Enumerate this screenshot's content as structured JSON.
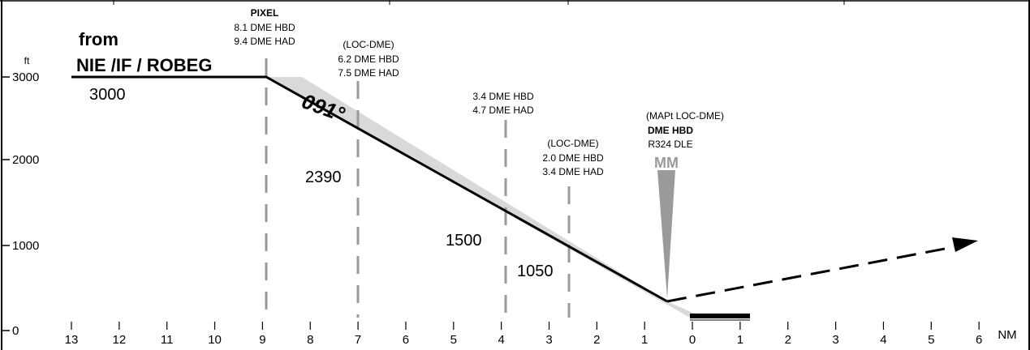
{
  "diagram": {
    "from_line1": "from",
    "from_line2": "NIE /IF / ROBEG",
    "alt_unit": "ft",
    "dist_unit": "NM",
    "initial_alt": "3000",
    "course": "091°",
    "alt_ticks": [
      "3000",
      "2000",
      "1000",
      "0"
    ],
    "dist_ticks": [
      "13",
      "12",
      "11",
      "10",
      "9",
      "8",
      "7",
      "6",
      "5",
      "4",
      "3",
      "2",
      "1",
      "0",
      "1",
      "2",
      "3",
      "4",
      "5",
      "6"
    ],
    "fixes": [
      {
        "lines": [
          "PIXEL",
          "8.1 DME HBD",
          "9.4 DME HAD"
        ],
        "bold_first": true
      },
      {
        "lines": [
          "(LOC-DME)",
          "6.2 DME HBD",
          "7.5 DME HAD"
        ],
        "bold_first": false
      },
      {
        "lines": [
          "3.4 DME HBD",
          "4.7 DME HAD"
        ],
        "bold_first": false
      },
      {
        "lines": [
          "(LOC-DME)",
          "2.0 DME HBD",
          "3.4 DME HAD"
        ],
        "bold_first": false
      },
      {
        "lines": [
          "(MAPt LOC-DME)",
          "DME HBD",
          "R324 DLE"
        ],
        "bold_line": 1
      }
    ],
    "crossing_alts": [
      "2390",
      "1500",
      "1050"
    ],
    "marker": "MM"
  }
}
